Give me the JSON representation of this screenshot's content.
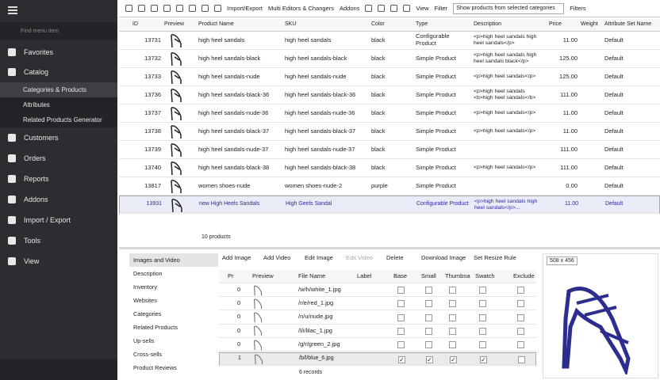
{
  "sidebar": {
    "search_placeholder": "Find menu item",
    "items": [
      "Favorites",
      "Catalog",
      "Customers",
      "Orders",
      "Reports",
      "Addons",
      "Import / Export",
      "Tools",
      "View"
    ],
    "catalog_sub": [
      "Categories & Products",
      "Attributes",
      "Related Products Generator"
    ]
  },
  "toolbar": {
    "buttons": [
      "Import/Export",
      "Multi Editors & Changers",
      "Addons",
      "View",
      "Filter"
    ],
    "filter_select": "Show products from selected categories",
    "filters": "Filters"
  },
  "table": {
    "columns": [
      "ID",
      "Preview",
      "Product Name",
      "SKU",
      "Color",
      "Type",
      "Description",
      "Price",
      "Weight",
      "Attribute Set Name"
    ],
    "rows": [
      [
        "13731",
        null,
        "high heel sandals",
        "high heel sandals",
        "black",
        "Configurable Product",
        "<p>high heel sandals high heel sandals</p>",
        "11.00",
        null,
        "Default"
      ],
      [
        "13732",
        null,
        "high heel sandals-black",
        "high heel sandals-black",
        "black",
        "Simple Product",
        "<p>high heel sandals high heel sandals black</p>",
        "125.00",
        null,
        "Default"
      ],
      [
        "13733",
        null,
        "high heel sandals-nude",
        "high heel sandals-nude",
        "black",
        "Simple Product",
        "<p>high heel sandals</p>",
        "125.00",
        null,
        "Default"
      ],
      [
        "13736",
        null,
        "high heel sandals-black-36",
        "high heel sandals-black-36",
        "black",
        "Simple Product",
        "<p>high heel sandals <b>high heel sandals</b>",
        "111.00",
        null,
        "Default"
      ],
      [
        "13737",
        null,
        "high heel sandals-nude-36",
        "high heel sandals-nude-36",
        "black",
        "Simple Product",
        "<p>high heel sandals</p>",
        "11.00",
        null,
        "Default"
      ],
      [
        "13738",
        null,
        "high heel sandals-black-37",
        "high heel sandals-black-37",
        "black",
        "Simple Product",
        "<p>high heel sandals</p>",
        "11.00",
        null,
        "Default"
      ],
      [
        "13739",
        null,
        "high heel sandals-nude-37",
        "high heel sandals-nude-37",
        "black",
        "Simple Product",
        null,
        "111.00",
        null,
        "Default"
      ],
      [
        "13740",
        null,
        "high heel sandals-black-38",
        "high heel sandals-black-38",
        "black",
        "Simple Product",
        "<p>high heel sandals</p>",
        "111.00",
        null,
        "Default"
      ],
      [
        "13817",
        null,
        "women shoes-nude",
        "women shoes-nude-2",
        "purple",
        "Simple Product",
        null,
        "0.00",
        null,
        "Default"
      ],
      [
        "13931",
        null,
        "new High Heels Sandals",
        "High Geels Sandal",
        null,
        "Configurable Product",
        "<p>high heel sandals high heel sandals</p>...",
        "11.00",
        null,
        "Default"
      ]
    ],
    "selected_row": 9,
    "footer": "10 products"
  },
  "tabs": [
    "Images and Video",
    "Description",
    "Inventory",
    "Websites",
    "Categories",
    "Related Products",
    "Up-sells",
    "Cross-sells",
    "Product Reviews"
  ],
  "image_toolbar": [
    "Add Image",
    "Add Video",
    "Edit Image",
    "Edit Video",
    "Delete",
    "Download Image",
    "Set Resize Rule"
  ],
  "image_table": {
    "columns": [
      "Pr",
      "Preview",
      "File Name",
      "Label",
      "Base",
      "Small",
      "Thumbna",
      "Swatch",
      "Exclude"
    ],
    "rows": [
      {
        "position": 0,
        "file": "/w/h/white_1.jpg",
        "checks": [
          false,
          false,
          false,
          false,
          false
        ]
      },
      {
        "position": 0,
        "file": "/r/e/red_1.jpg",
        "checks": [
          false,
          false,
          false,
          false,
          false
        ]
      },
      {
        "position": 0,
        "file": "/n/u/nude.jpg",
        "checks": [
          false,
          false,
          false,
          false,
          false
        ]
      },
      {
        "position": 0,
        "file": "/l/i/lilac_1.jpg",
        "checks": [
          false,
          false,
          false,
          false,
          false
        ]
      },
      {
        "position": 0,
        "file": "/g/r/green_2.jpg",
        "checks": [
          false,
          false,
          false,
          false,
          false
        ]
      },
      {
        "position": 1,
        "file": "/b/l/blue_6.jpg",
        "checks": [
          true,
          true,
          true,
          true,
          false
        ]
      }
    ],
    "selected_row": 5,
    "footer": "6 records"
  },
  "preview": {
    "size": "508 x 456"
  }
}
